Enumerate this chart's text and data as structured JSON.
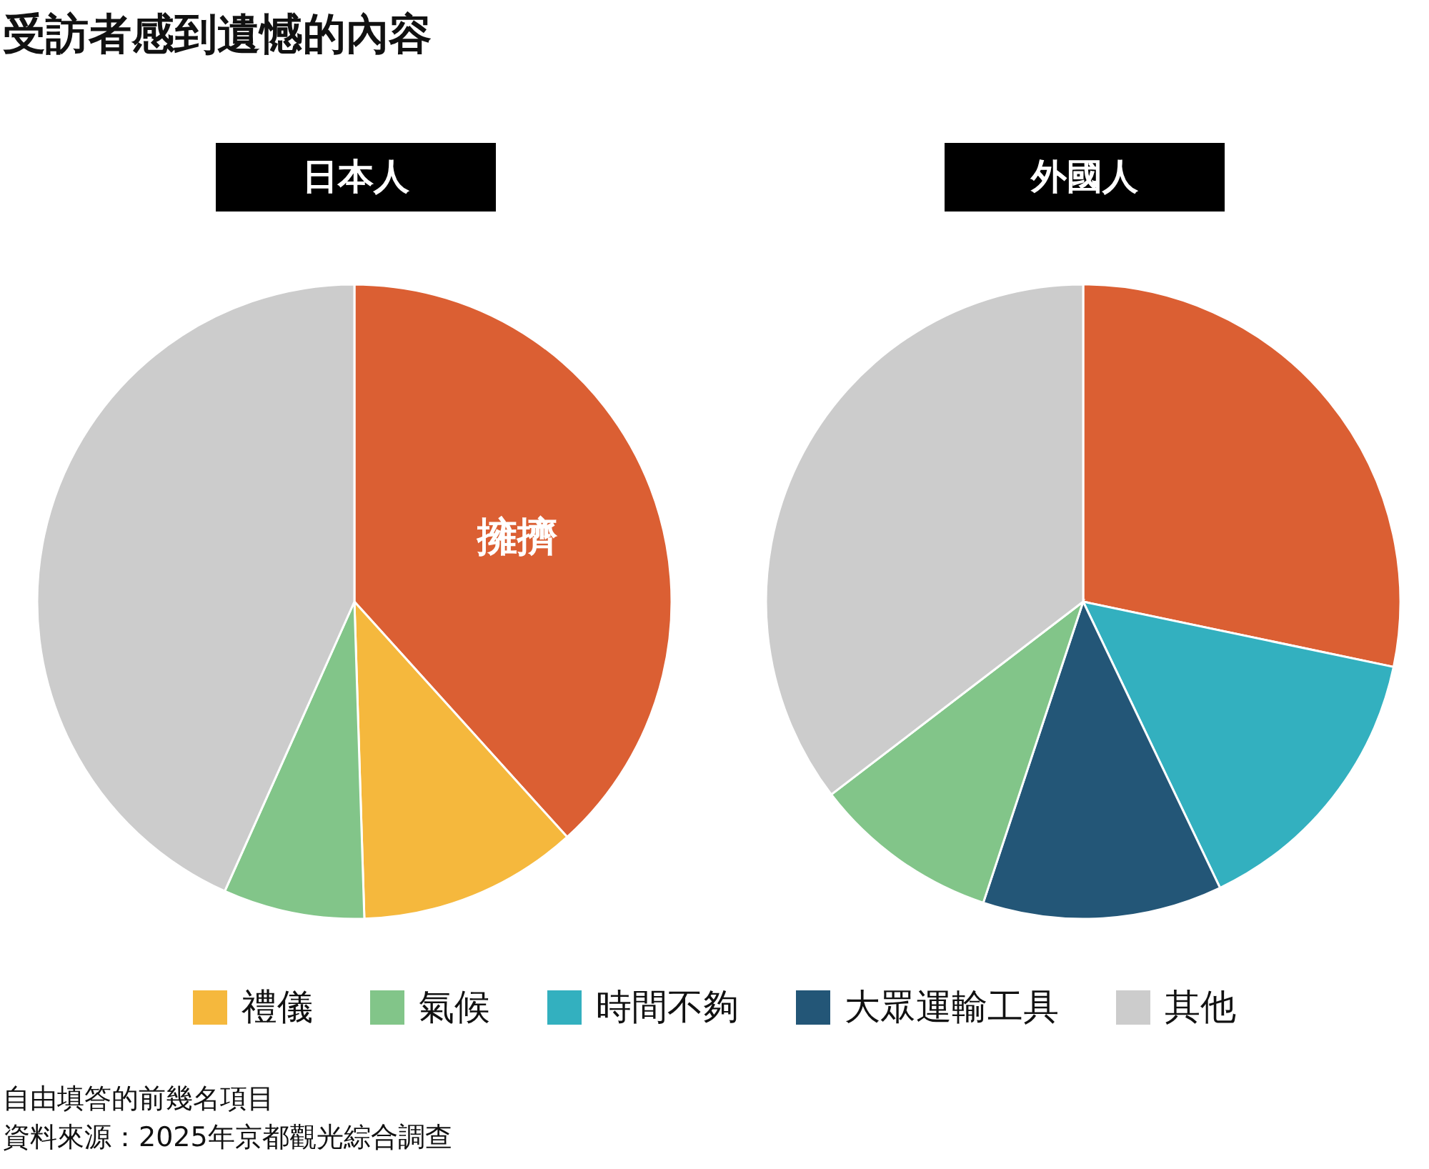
{
  "chart_data": [
    {
      "type": "other",
      "title": "受訪者感到遺憾的內容",
      "annotations": [
        "自由填答的前幾名項目",
        "資料來源：2025年京都觀光綜合調查"
      ]
    },
    {
      "type": "pie",
      "title": "日本人",
      "categories": [
        null,
        "禮儀",
        "氣候",
        "其他"
      ],
      "values": [
        38.3,
        11.2,
        7.2,
        43.3
      ],
      "colors": [
        "#db5f33",
        "#f5b83d",
        "#82c589",
        "#cccccc"
      ],
      "legend": "bottom",
      "annotations": [
        "擁擠"
      ]
    },
    {
      "type": "pie",
      "title": "外國人",
      "categories": [
        null,
        "時間不夠",
        "大眾運輸工具",
        null,
        null
      ],
      "values": [
        28.3,
        14.6,
        12.2,
        9.5,
        35.4
      ],
      "colors": [
        "#db5f33",
        "#33b0bf",
        "#235677",
        "#82c589",
        "#cccccc"
      ],
      "legend": "bottom"
    }
  ]
}
